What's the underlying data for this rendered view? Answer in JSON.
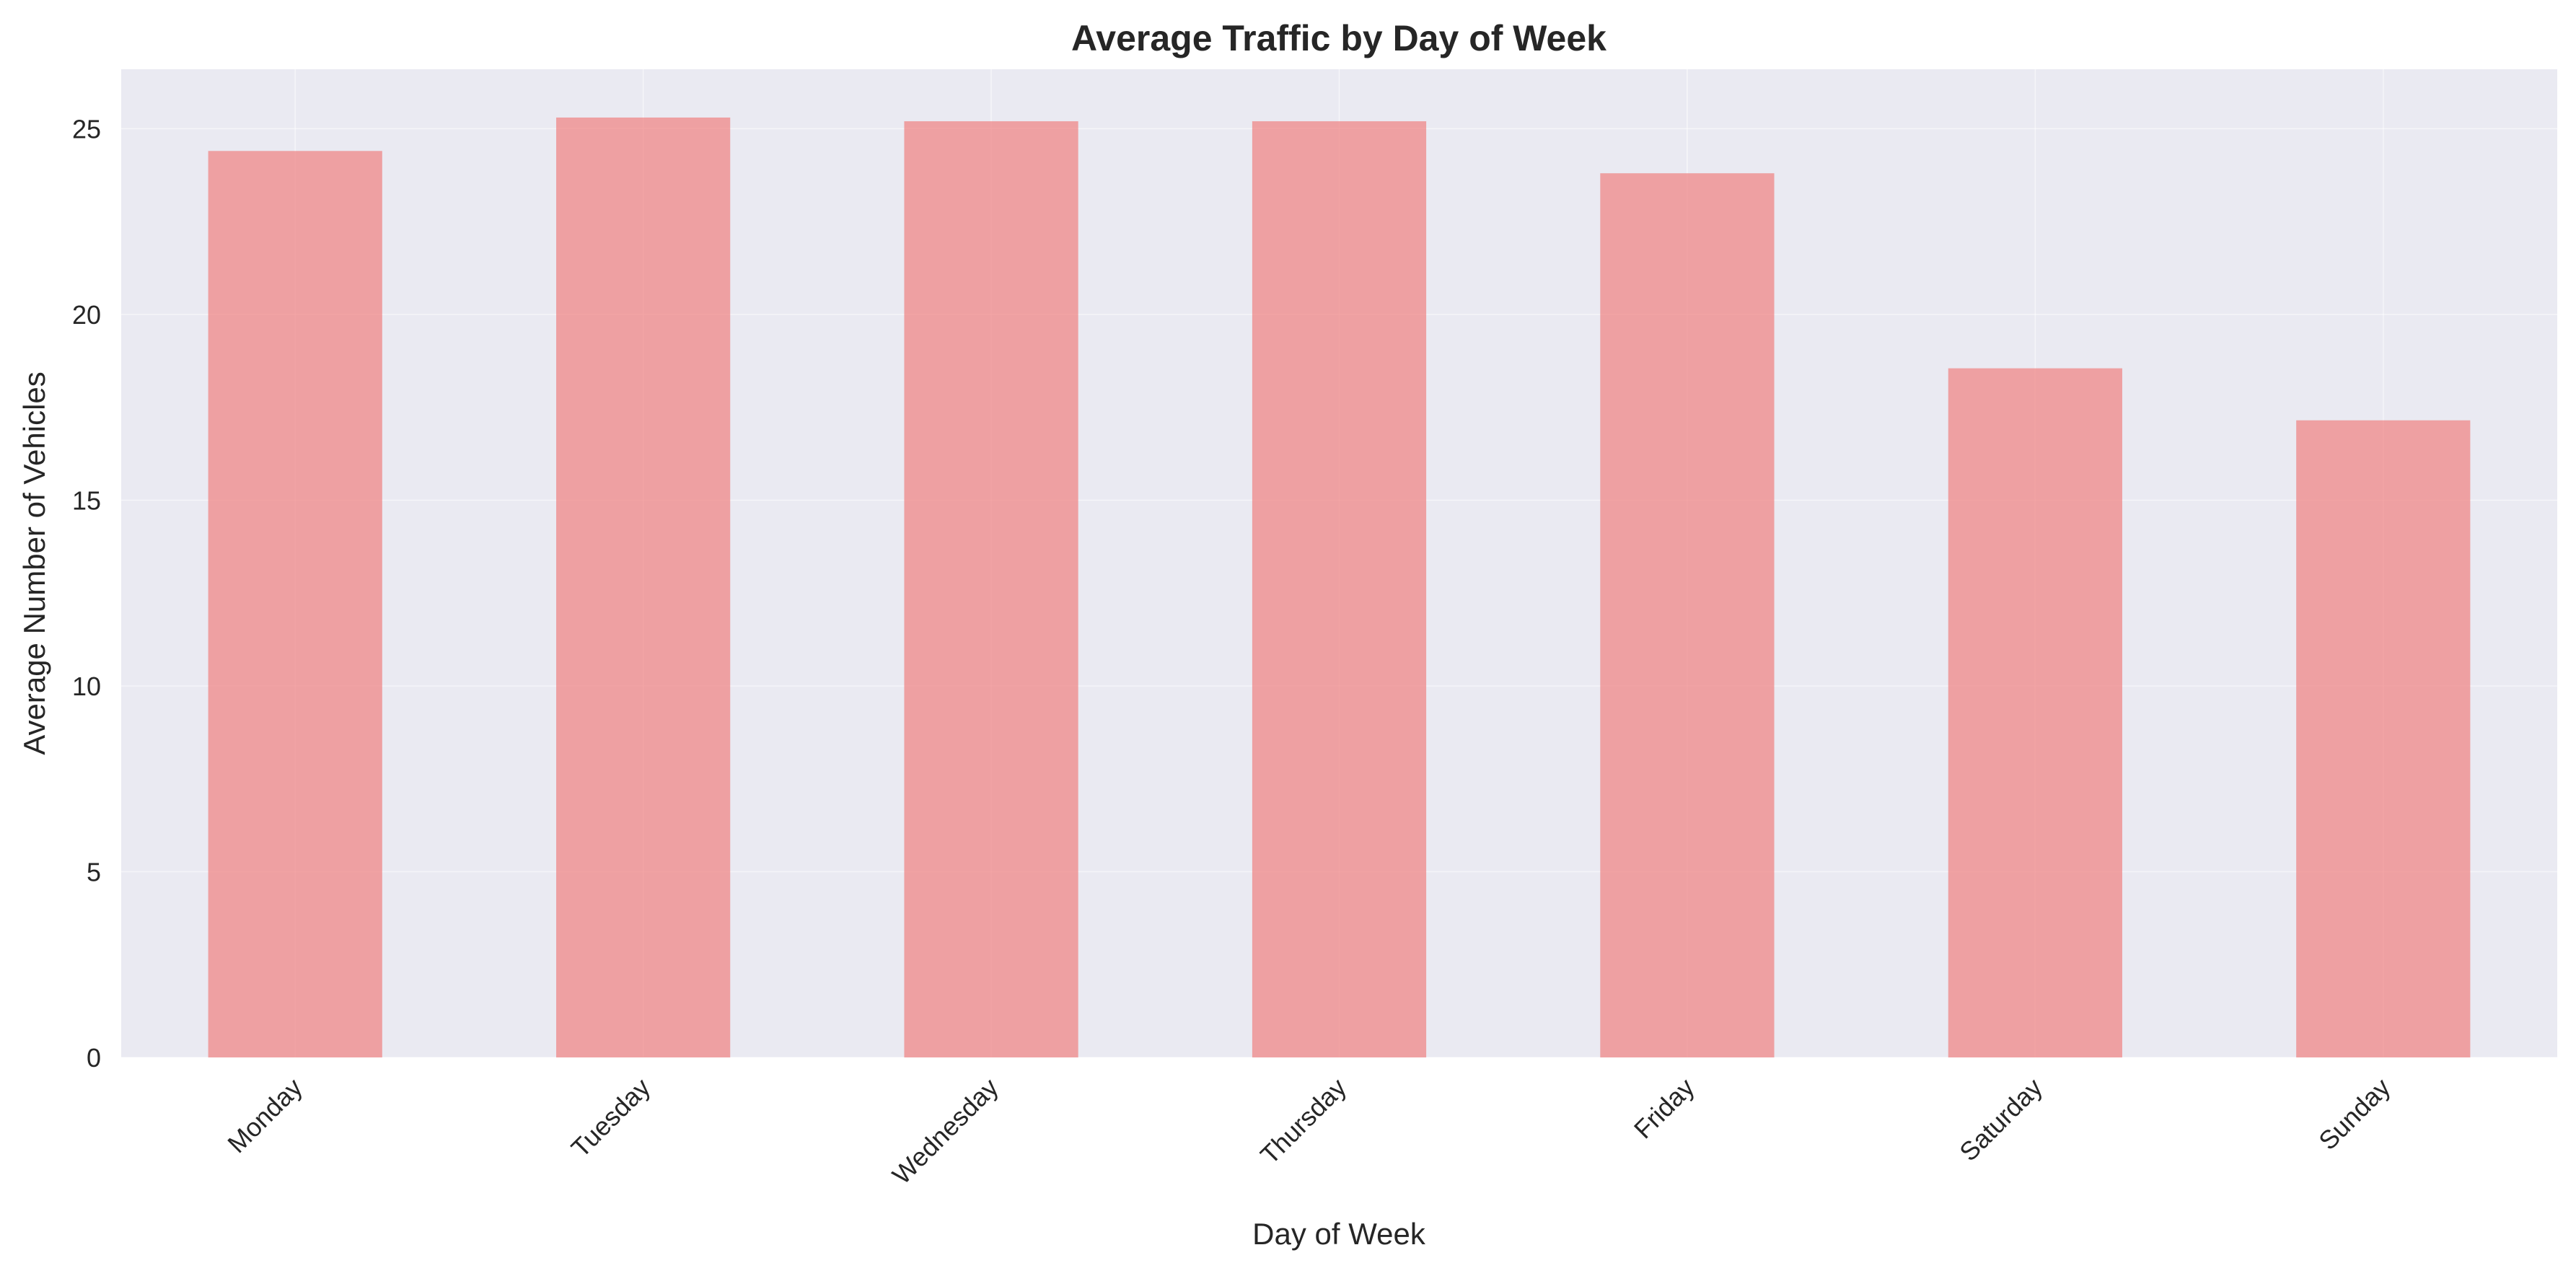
{
  "chart_data": {
    "type": "bar",
    "title": "Average Traffic by Day of Week",
    "xlabel": "Day of Week",
    "ylabel": "Average Number of Vehicles",
    "categories": [
      "Monday",
      "Tuesday",
      "Wednesday",
      "Thursday",
      "Friday",
      "Saturday",
      "Sunday"
    ],
    "values": [
      24.4,
      25.3,
      25.2,
      25.2,
      23.8,
      18.55,
      17.15
    ],
    "ylim": [
      0,
      26.6
    ],
    "yticks": [
      0,
      5,
      10,
      15,
      20,
      25
    ],
    "grid": true,
    "x_tick_rotation": "45 degrees",
    "colors": {
      "bar": "#f08080",
      "plot_background": "#eaeaf2",
      "grid": "#ffffff",
      "text": "#262626"
    }
  }
}
